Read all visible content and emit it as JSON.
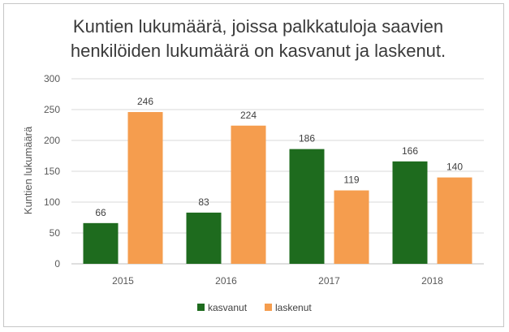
{
  "chart_data": {
    "type": "bar",
    "title_lines": [
      "Kuntien lukumäärä, joissa palkkatuloja saavien",
      "henkilöiden  lukumäärä on kasvanut ja laskenut."
    ],
    "ylabel": "Kuntien lukumäärä",
    "xlabel": "",
    "categories": [
      "2015",
      "2016",
      "2017",
      "2018"
    ],
    "ylim": [
      0,
      300
    ],
    "yticks": [
      0,
      50,
      100,
      150,
      200,
      250,
      300
    ],
    "grid": true,
    "legend_position": "bottom",
    "series": [
      {
        "name": "kasvanut",
        "color": "#1e6b1e",
        "values": [
          66,
          83,
          186,
          166
        ]
      },
      {
        "name": "laskenut",
        "color": "#f59d4e",
        "values": [
          246,
          224,
          119,
          140
        ]
      }
    ]
  }
}
